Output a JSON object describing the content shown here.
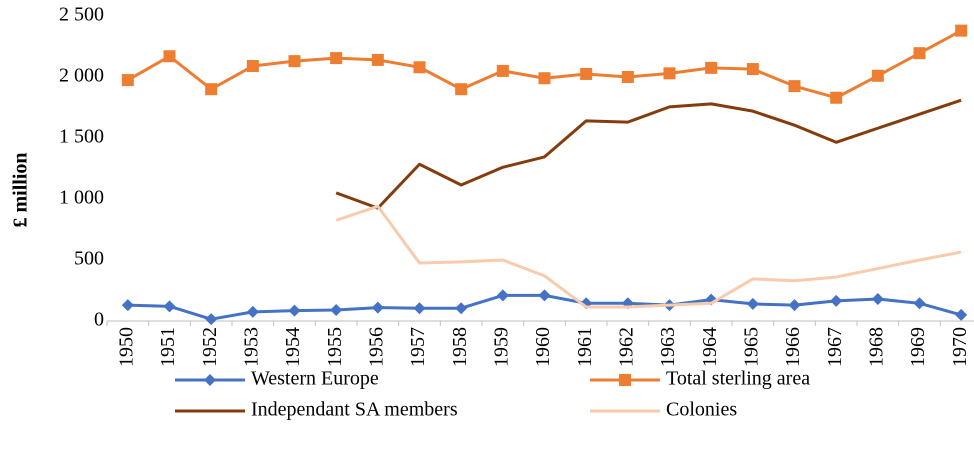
{
  "chart_data": {
    "type": "line",
    "y_label": "£ million",
    "categories": [
      "1950",
      "1951",
      "1952",
      "1953",
      "1954",
      "1955",
      "1956",
      "1957",
      "1958",
      "1959",
      "1960",
      "1961",
      "1962",
      "1963",
      "1964",
      "1965",
      "1966",
      "1967",
      "1968",
      "1969",
      "1970"
    ],
    "ylim": [
      0,
      2500
    ],
    "yticks": [
      0,
      500,
      {
        "value": 1000,
        "label": "1 000"
      },
      {
        "value": 1500,
        "label": "1 500"
      },
      {
        "value": 2000,
        "label": "2 000"
      },
      {
        "value": 2500,
        "label": "2 500"
      }
    ],
    "grid": false,
    "legend": "bottom",
    "series": [
      {
        "name": "Western Europe",
        "color": "#4472c4",
        "marker": "diamond",
        "values": [
          130,
          120,
          15,
          75,
          85,
          90,
          110,
          105,
          105,
          210,
          210,
          145,
          145,
          130,
          175,
          140,
          130,
          165,
          180,
          145,
          50
        ]
      },
      {
        "name": "Total sterling area",
        "color": "#ed7d31",
        "marker": "square",
        "values": [
          1975,
          2170,
          1900,
          2090,
          2130,
          2155,
          2140,
          2080,
          1900,
          2050,
          1990,
          2025,
          2000,
          2030,
          2075,
          2065,
          1925,
          1830,
          2010,
          2195,
          2380
        ]
      },
      {
        "name": "Independant SA members",
        "color": "#843c0c",
        "values": [
          null,
          null,
          null,
          null,
          null,
          1050,
          925,
          1285,
          1115,
          1260,
          1345,
          1640,
          1630,
          1755,
          1780,
          1720,
          1605,
          1465,
          1580,
          1695,
          1810
        ]
      },
      {
        "name": "Colonies",
        "color": "#f8cbad",
        "values": [
          null,
          null,
          null,
          null,
          null,
          825,
          940,
          475,
          485,
          500,
          370,
          115,
          115,
          130,
          145,
          345,
          330,
          360,
          430,
          500,
          565
        ]
      }
    ]
  }
}
